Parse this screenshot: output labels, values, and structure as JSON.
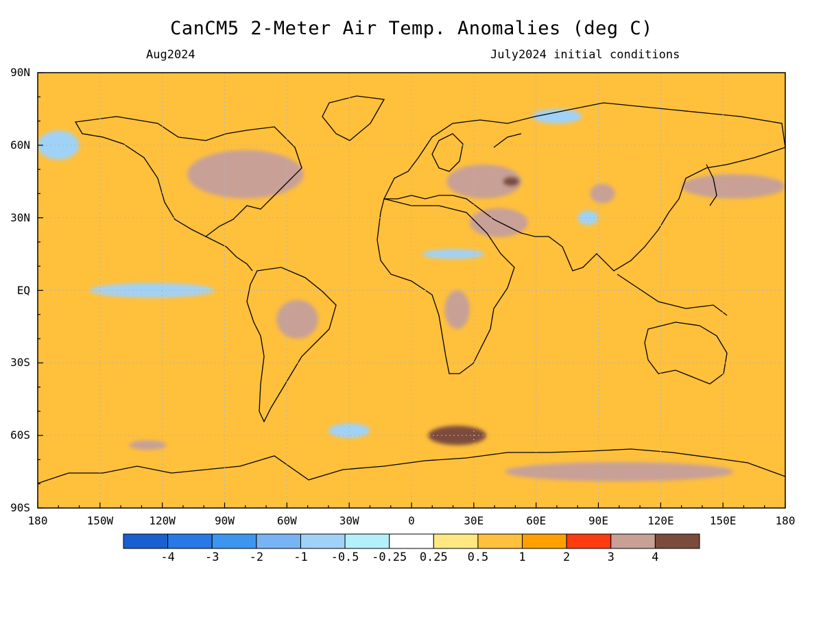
{
  "title": "CanCM5 2-Meter Air Temp. Anomalies (deg C)",
  "subtitle_left": "Aug2024",
  "subtitle_right": "July2024 initial conditions",
  "lat_labels": [
    "90N",
    "60N",
    "30N",
    "EQ",
    "30S",
    "60S",
    "90S"
  ],
  "lon_labels": [
    "180",
    "150W",
    "120W",
    "90W",
    "60W",
    "30W",
    "0",
    "30E",
    "60E",
    "90E",
    "120E",
    "150E",
    "180"
  ],
  "colorbar": {
    "colors": [
      "#1a5fd0",
      "#2878e8",
      "#3c96f0",
      "#78b4f4",
      "#a0d2f8",
      "#b4f0fa",
      "#ffffff",
      "#ffe882",
      "#ffc03c",
      "#ffa000",
      "#ff3c0f",
      "#c8a096",
      "#7b4b3c"
    ],
    "labels": [
      "-4",
      "-3",
      "-2",
      "-1",
      "-0.5",
      "-0.25",
      "0.25",
      "0.5",
      "1",
      "2",
      "3",
      "4"
    ]
  },
  "map": {
    "extent": {
      "lon": [
        -180,
        180
      ],
      "lat": [
        -90,
        90
      ]
    },
    "units": "deg C",
    "anomaly_regions": [
      {
        "name": "Eastern North America",
        "lon": -80,
        "lat": 48,
        "rx": 28,
        "ry": 10,
        "value": 3
      },
      {
        "name": "Eastern Europe",
        "lon": 35,
        "lat": 45,
        "rx": 18,
        "ry": 7,
        "value": 3.5
      },
      {
        "name": "Caspian region",
        "lon": 48,
        "lat": 45,
        "rx": 4,
        "ry": 2,
        "value": 4.2
      },
      {
        "name": "Middle East",
        "lon": 42,
        "lat": 28,
        "rx": 14,
        "ry": 6,
        "value": 3
      },
      {
        "name": "Central Asia",
        "lon": 92,
        "lat": 40,
        "rx": 6,
        "ry": 4,
        "value": 3
      },
      {
        "name": "Japan / NW Pacific",
        "lon": 155,
        "lat": 43,
        "rx": 25,
        "ry": 5,
        "value": 3
      },
      {
        "name": "Central South America",
        "lon": -55,
        "lat": -12,
        "rx": 10,
        "ry": 8,
        "value": 3.4
      },
      {
        "name": "Central Africa",
        "lon": 22,
        "lat": -8,
        "rx": 6,
        "ry": 8,
        "value": 3
      },
      {
        "name": "Southern Ocean south of Africa",
        "lon": 22,
        "lat": -60,
        "rx": 14,
        "ry": 4,
        "value": 4.2
      },
      {
        "name": "South Pacific",
        "lon": -127,
        "lat": -64,
        "rx": 9,
        "ry": 2,
        "value": 3.3
      },
      {
        "name": "East Antarctica",
        "lon": 100,
        "lat": -75,
        "rx": 55,
        "ry": 4,
        "value": 3
      },
      {
        "name": "Equatorial Pacific",
        "lon": -125,
        "lat": 0,
        "rx": 30,
        "ry": 3,
        "value": -1
      },
      {
        "name": "Bering Sea",
        "lon": -170,
        "lat": 60,
        "rx": 10,
        "ry": 6,
        "value": -1
      },
      {
        "name": "Eastern Siberia",
        "lon": 70,
        "lat": 72,
        "rx": 12,
        "ry": 3,
        "value": -1
      },
      {
        "name": "Tibetan Plateau",
        "lon": 85,
        "lat": 30,
        "rx": 5,
        "ry": 3,
        "value": -1
      },
      {
        "name": "Sahel",
        "lon": 20,
        "lat": 15,
        "rx": 15,
        "ry": 2,
        "value": -1
      },
      {
        "name": "South Atlantic",
        "lon": -30,
        "lat": -58,
        "rx": 10,
        "ry": 3,
        "value": -1
      }
    ]
  }
}
